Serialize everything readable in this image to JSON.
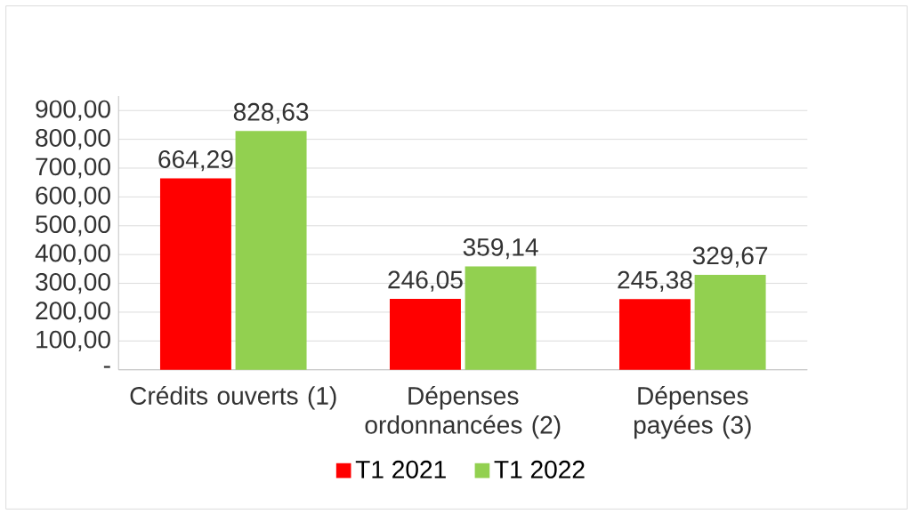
{
  "chart_data": {
    "type": "bar",
    "categories": [
      "Crédits ouverts (1)",
      "Dépenses ordonnancées (2)",
      "Dépenses payées (3)"
    ],
    "series": [
      {
        "name": "T1 2021",
        "color": "#ff0000",
        "values": [
          664.29,
          246.05,
          245.38
        ],
        "value_labels": [
          "664,29",
          "246,05",
          "245,38"
        ]
      },
      {
        "name": "T1 2022",
        "color": "#92d050",
        "values": [
          828.63,
          359.14,
          329.67
        ],
        "value_labels": [
          "828,63",
          "359,14",
          "329,67"
        ]
      }
    ],
    "ylim": [
      0,
      950
    ],
    "yticks": [
      {
        "value": 0,
        "label": "-"
      },
      {
        "value": 100,
        "label": "100,00"
      },
      {
        "value": 200,
        "label": "200,00"
      },
      {
        "value": 300,
        "label": "300,00"
      },
      {
        "value": 400,
        "label": "400,00"
      },
      {
        "value": 500,
        "label": "500,00"
      },
      {
        "value": 600,
        "label": "600,00"
      },
      {
        "value": 700,
        "label": "700,00"
      },
      {
        "value": 800,
        "label": "800,00"
      },
      {
        "value": 900,
        "label": "900,00"
      }
    ],
    "grid": "y",
    "legend": "bottom"
  }
}
